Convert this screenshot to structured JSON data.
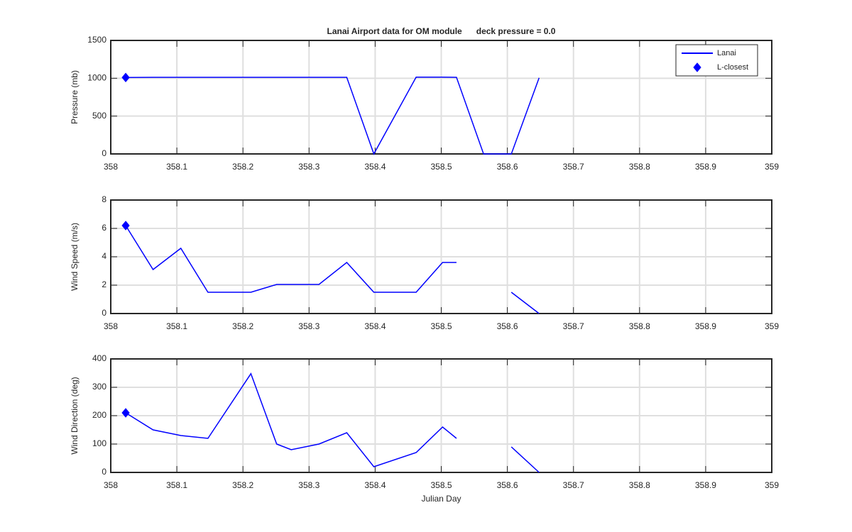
{
  "chart_data": [
    {
      "type": "line",
      "title": "Lanai Airport data for OM module      deck pressure = 0.0",
      "ylabel": "Pressure (mb)",
      "grid": true,
      "legend": "northeast",
      "x": [
        358.0226,
        358.064,
        358.106,
        358.147,
        358.212,
        358.251,
        358.315,
        358.357,
        358.398,
        358.462,
        358.502,
        358.523,
        358.564,
        358.606,
        358.648
      ],
      "series": [
        {
          "name": "Lanai",
          "color": "#0000ff",
          "values": [
            1010,
            1012,
            1013,
            1013,
            1013,
            1013,
            1013,
            1013,
            0,
            1015,
            1015,
            1013,
            0,
            0,
            1005
          ]
        },
        {
          "name": "L-closest",
          "color": "#0000ff",
          "marker": "diamond",
          "x": [
            358.0226
          ],
          "values": [
            1010
          ]
        }
      ],
      "xlim": [
        358,
        359
      ],
      "xticks": [
        358,
        358.1,
        358.2,
        358.3,
        358.4,
        358.5,
        358.6,
        358.7,
        358.8,
        358.9,
        359
      ],
      "ylim": [
        0,
        1500
      ],
      "yticks": [
        0,
        500,
        1000,
        1500
      ]
    },
    {
      "type": "line",
      "ylabel": "Wind Speed (m/s)",
      "grid": true,
      "x": [
        358.0226,
        358.064,
        358.106,
        358.147,
        358.212,
        358.251,
        358.315,
        358.357,
        358.398,
        358.462,
        358.502,
        358.523,
        358.564,
        358.606,
        358.648
      ],
      "series": [
        {
          "color": "#0000ff",
          "values": [
            6.2,
            3.1,
            4.6,
            1.5,
            1.5,
            2.05,
            2.05,
            3.6,
            1.5,
            1.5,
            3.6,
            3.6,
            null,
            1.5,
            0
          ]
        },
        {
          "color": "#0000ff",
          "marker": "diamond",
          "x": [
            358.0226
          ],
          "values": [
            6.2
          ]
        }
      ],
      "xlim": [
        358,
        359
      ],
      "xticks": [
        358,
        358.1,
        358.2,
        358.3,
        358.4,
        358.5,
        358.6,
        358.7,
        358.8,
        358.9,
        359
      ],
      "ylim": [
        0,
        8
      ],
      "yticks": [
        0,
        2,
        4,
        6,
        8
      ]
    },
    {
      "type": "line",
      "ylabel": "Wind Direction (deg)",
      "xlabel": "Julian Day",
      "grid": true,
      "x": [
        358.0226,
        358.064,
        358.106,
        358.147,
        358.212,
        358.251,
        358.273,
        358.315,
        358.357,
        358.398,
        358.462,
        358.502,
        358.523,
        358.564,
        358.606,
        358.648
      ],
      "series": [
        {
          "color": "#0000ff",
          "values": [
            210,
            150,
            130,
            120,
            348,
            100,
            80,
            100,
            140,
            20,
            70,
            160,
            120,
            null,
            90,
            0
          ]
        },
        {
          "color": "#0000ff",
          "marker": "diamond",
          "x": [
            358.0226
          ],
          "values": [
            210
          ]
        }
      ],
      "xlim": [
        358,
        359
      ],
      "xticks": [
        358,
        358.1,
        358.2,
        358.3,
        358.4,
        358.5,
        358.6,
        358.7,
        358.8,
        358.9,
        359
      ],
      "ylim": [
        0,
        400
      ],
      "yticks": [
        0,
        100,
        200,
        300,
        400
      ]
    }
  ]
}
